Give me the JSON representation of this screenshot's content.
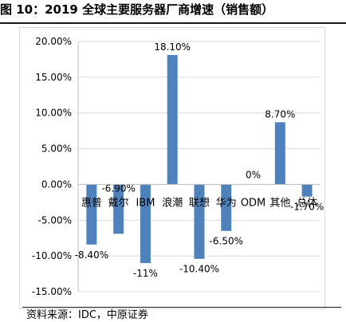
{
  "figure": {
    "title": "图 10：2019 全球主要服务器厂商增速（销售额）",
    "source": "资料来源：IDC，中原证券"
  },
  "chart_data": {
    "type": "bar",
    "title": "",
    "xlabel": "",
    "ylabel": "",
    "categories": [
      "惠普",
      "戴尔",
      "IBM",
      "浪潮",
      "联想",
      "华为",
      "ODM",
      "其他",
      "总体"
    ],
    "values": [
      -8.4,
      -6.9,
      -11.0,
      18.1,
      -10.4,
      -6.5,
      0.0,
      8.7,
      -1.7
    ],
    "value_labels": [
      "-8.40%",
      "-6.90%",
      "-11%",
      "18.10%",
      "-10.40%",
      "-6.50%",
      "0%",
      "8.70%",
      "-1.70%"
    ],
    "ylim": [
      -15,
      20
    ],
    "yticks": [
      20,
      15,
      10,
      5,
      0,
      -5,
      -10,
      -15
    ],
    "ytick_labels": [
      "20.00%",
      "15.00%",
      "10.00%",
      "5.00%",
      "0.00%",
      "-5.00%",
      "-10.00%",
      "-15.00%"
    ],
    "grid": true,
    "legend": "none",
    "bar_color": "#4f81bd",
    "grid_color": "#d9d9d9"
  }
}
